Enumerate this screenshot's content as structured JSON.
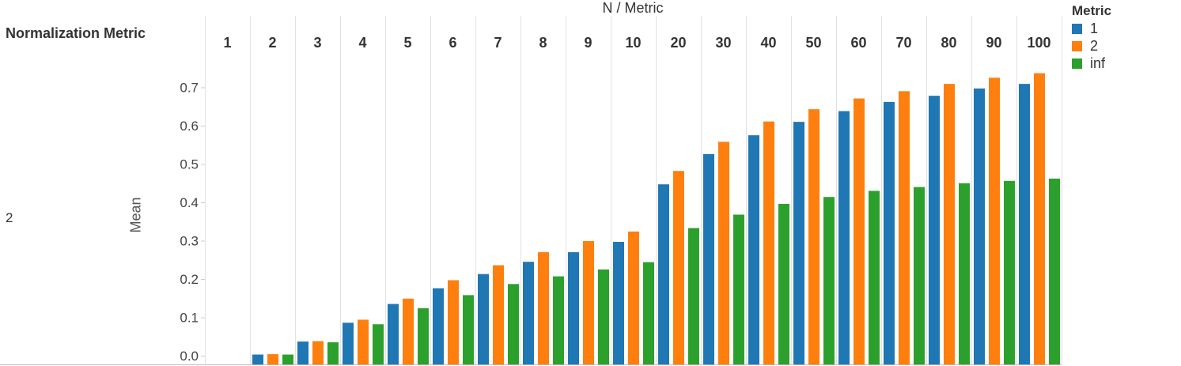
{
  "chart_data": {
    "type": "bar",
    "title": "N  /  Metric",
    "row_header": "Normalization Metric",
    "row_value": "2",
    "ylabel": "Mean",
    "categories": [
      "1",
      "2",
      "3",
      "4",
      "5",
      "6",
      "7",
      "8",
      "9",
      "10",
      "20",
      "30",
      "40",
      "50",
      "60",
      "70",
      "80",
      "90",
      "100"
    ],
    "ylim": [
      -0.022,
      0.8
    ],
    "yticks": [
      "0.0",
      "0.1",
      "0.2",
      "0.3",
      "0.4",
      "0.5",
      "0.6",
      "0.7"
    ],
    "legend_title": "Metric",
    "legend_position": "top-right",
    "grid": false,
    "series": [
      {
        "name": "1",
        "color": "#1f77b4",
        "values": [
          0.0,
          0.003,
          0.037,
          0.086,
          0.135,
          0.176,
          0.213,
          0.245,
          0.27,
          0.297,
          0.447,
          0.526,
          0.575,
          0.61,
          0.638,
          0.662,
          0.678,
          0.697,
          0.709
        ]
      },
      {
        "name": "2",
        "color": "#ff7f0e",
        "values": [
          0.0,
          0.004,
          0.038,
          0.094,
          0.149,
          0.197,
          0.236,
          0.27,
          0.299,
          0.324,
          0.482,
          0.558,
          0.611,
          0.643,
          0.671,
          0.69,
          0.709,
          0.725,
          0.737
        ]
      },
      {
        "name": "inf",
        "color": "#2ca02c",
        "values": [
          0.0,
          0.003,
          0.035,
          0.082,
          0.124,
          0.158,
          0.187,
          0.207,
          0.225,
          0.244,
          0.333,
          0.368,
          0.396,
          0.414,
          0.43,
          0.44,
          0.45,
          0.456,
          0.462
        ]
      }
    ]
  }
}
